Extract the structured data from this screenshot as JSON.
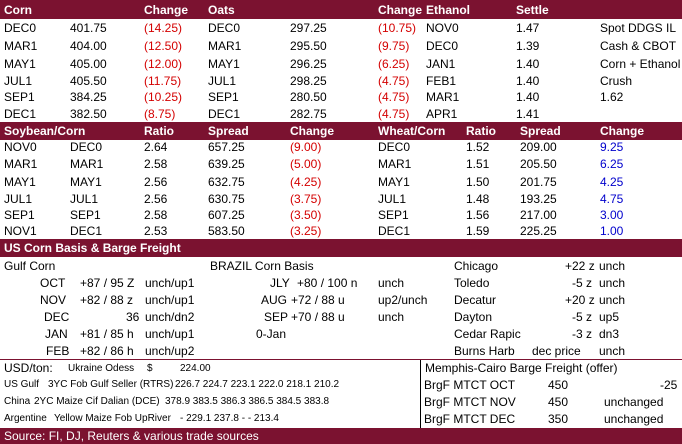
{
  "colors": {
    "band": "#7b1230",
    "negative": "#d40000",
    "positive": "#0000cc"
  },
  "sec1": {
    "headers": [
      "Corn",
      "Change",
      "Oats",
      "Change",
      "Ethanol",
      "Settle"
    ],
    "rows": [
      {
        "cm": "DEC0",
        "cp": "401.75",
        "cc": "(14.25)",
        "om": "DEC0",
        "op": "297.25",
        "oc": "(10.75)",
        "em": "NOV0",
        "ep": "1.47",
        "note": "Spot DDGS IL"
      },
      {
        "cm": "MAR1",
        "cp": "404.00",
        "cc": "(12.50)",
        "om": "MAR1",
        "op": "295.50",
        "oc": "(9.75)",
        "em": "DEC0",
        "ep": "1.39",
        "note": "Cash & CBOT"
      },
      {
        "cm": "MAY1",
        "cp": "405.00",
        "cc": "(12.00)",
        "om": "MAY1",
        "op": "296.25",
        "oc": "(6.25)",
        "em": "JAN1",
        "ep": "1.40",
        "note": "Corn + Ethanol"
      },
      {
        "cm": "JUL1",
        "cp": "405.50",
        "cc": "(11.75)",
        "om": "JUL1",
        "op": "298.25",
        "oc": "(4.75)",
        "em": "FEB1",
        "ep": "1.40",
        "note": "Crush"
      },
      {
        "cm": "SEP1",
        "cp": "384.25",
        "cc": "(10.25)",
        "om": "SEP1",
        "op": "280.50",
        "oc": "(4.75)",
        "em": "MAR1",
        "ep": "1.40",
        "note": "1.62"
      },
      {
        "cm": "DEC1",
        "cp": "382.50",
        "cc": "(8.75)",
        "om": "DEC1",
        "op": "282.75",
        "oc": "(4.75)",
        "em": "APR1",
        "ep": "1.41",
        "note": ""
      }
    ]
  },
  "sec2": {
    "headers": [
      "Soybean/Corn",
      "Ratio",
      "Spread",
      "Change",
      "Wheat/Corn",
      "Ratio",
      "Spread",
      "Change"
    ],
    "rows": [
      {
        "s1": "NOV0",
        "s2": "DEC0",
        "sr": "2.64",
        "ss": "657.25",
        "sc": "(9.00)",
        "w1": "DEC0",
        "wr": "1.52",
        "ws": "209.00",
        "wc": "9.25"
      },
      {
        "s1": "MAR1",
        "s2": "MAR1",
        "sr": "2.58",
        "ss": "639.25",
        "sc": "(5.00)",
        "w1": "MAR1",
        "wr": "1.51",
        "ws": "205.50",
        "wc": "6.25"
      },
      {
        "s1": "MAY1",
        "s2": "MAY1",
        "sr": "2.56",
        "ss": "632.75",
        "sc": "(4.25)",
        "w1": "MAY1",
        "wr": "1.50",
        "ws": "201.75",
        "wc": "4.25"
      },
      {
        "s1": "JUL1",
        "s2": "JUL1",
        "sr": "2.56",
        "ss": "630.75",
        "sc": "(3.75)",
        "w1": "JUL1",
        "wr": "1.48",
        "ws": "193.25",
        "wc": "4.75"
      },
      {
        "s1": "SEP1",
        "s2": "SEP1",
        "sr": "2.58",
        "ss": "607.25",
        "sc": "(3.50)",
        "w1": "SEP1",
        "wr": "1.56",
        "ws": "217.00",
        "wc": "3.00"
      },
      {
        "s1": "NOV1",
        "s2": "DEC1",
        "sr": "2.53",
        "ss": "583.50",
        "sc": "(3.25)",
        "w1": "DEC1",
        "wr": "1.59",
        "ws": "225.25",
        "wc": "1.00"
      }
    ]
  },
  "basis": {
    "title": "US Corn Basis & Barge Freight",
    "gulf_title": "Gulf Corn",
    "brazil_title": "BRAZIL Corn Basis",
    "gulf": [
      {
        "m": "OCT",
        "v": "+87 / 95 Z",
        "c": "unch/up1"
      },
      {
        "m": "NOV",
        "v": "+82 / 88 z",
        "c": "unch/up1"
      },
      {
        "m": "DEC",
        "v": "36",
        "c": "unch/dn2"
      },
      {
        "m": "JAN",
        "v": "+81 / 85 h",
        "c": "unch/up1"
      },
      {
        "m": "FEB",
        "v": "+82 / 86 h",
        "c": "unch/up2"
      }
    ],
    "brazil": [
      {
        "m": "JLY",
        "v": "+80 / 100 n",
        "c": "unch"
      },
      {
        "m": "AUG",
        "v": "+72 / 88 u",
        "c": "up2/unch"
      },
      {
        "m": "SEP",
        "v": "+70 / 88 u",
        "c": "unch"
      },
      {
        "m": "",
        "v": "0-Jan",
        "c": ""
      }
    ],
    "us": [
      {
        "loc": "Chicago",
        "v": "+22 z",
        "c": "unch"
      },
      {
        "loc": "Toledo",
        "v": "-5 z",
        "c": "unch"
      },
      {
        "loc": "Decatur",
        "v": "+20 z",
        "c": "unch"
      },
      {
        "loc": "Dayton",
        "v": "-5 z",
        "c": "up5"
      },
      {
        "loc": "Cedar Rapic",
        "v": "-3 z",
        "c": "dn3"
      },
      {
        "loc": "Burns Harb",
        "v": "dec price",
        "c": "unch"
      }
    ]
  },
  "usd": {
    "label": "USD/ton:",
    "ukraine_label": "Ukraine Odess",
    "ukraine_cur": "$",
    "ukraine_val": "224.00",
    "memphis": "Memphis-Cairo Barge Freight (offer)",
    "rows": [
      {
        "a": "US Gulf",
        "b": "3YC Fob Gulf Seller (RTRS)",
        "vals": "226.7  224.7  223.1  222.0  218.1  210.2"
      },
      {
        "a": "China",
        "b": "2YC Maize Cif Dalian (DCE)",
        "vals": "378.9  383.5  386.3  386.5  384.5  383.8"
      },
      {
        "a": "Argentine",
        "b": "Yellow Maize Fob UpRiver",
        "vals": "-   229.1  237.8   -   -   213.4"
      }
    ],
    "barge": [
      {
        "n": "BrgF MTCT OCT",
        "v": "450",
        "c": "-25"
      },
      {
        "n": "BrgF MTCT NOV",
        "v": "450",
        "c": "unchanged"
      },
      {
        "n": "BrgF MTCT DEC",
        "v": "350",
        "c": "unchanged"
      }
    ]
  },
  "footer": "Source: FI, DJ, Reuters & various trade sources"
}
